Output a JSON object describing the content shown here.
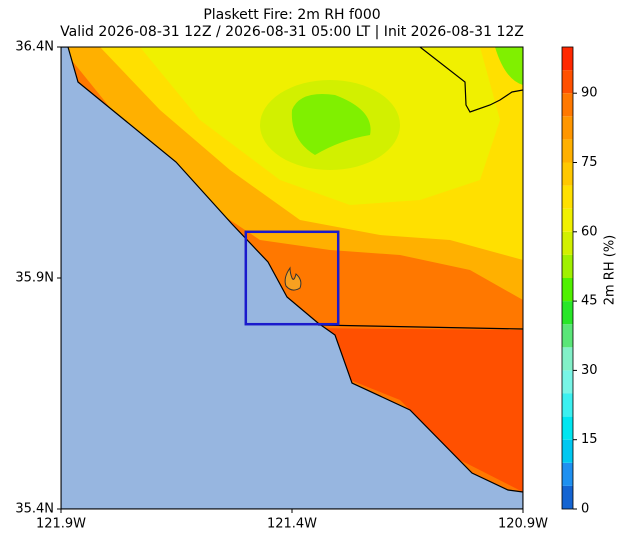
{
  "title": [
    "Plaskett Fire: 2m RH f000",
    "Valid 2026-08-31 12Z / 2026-08-31 05:00 LT | Init 2026-08-31 12Z"
  ],
  "map": {
    "xlim": [
      -121.9,
      -120.9
    ],
    "ylim": [
      35.4,
      36.4
    ],
    "xticks": [
      {
        "value": -121.9,
        "label": "121.9W"
      },
      {
        "value": -121.4,
        "label": "121.4W"
      },
      {
        "value": -120.9,
        "label": "120.9W"
      }
    ],
    "yticks": [
      {
        "value": 35.4,
        "label": "35.4N"
      },
      {
        "value": 35.9,
        "label": "35.9N"
      },
      {
        "value": 36.4,
        "label": "36.4N"
      }
    ],
    "fire_box": {
      "lon": [
        -121.5,
        -121.3
      ],
      "lat": [
        35.8,
        36.0
      ],
      "color": "#1a1acc"
    }
  },
  "colorbar": {
    "label": "2m RH (%)",
    "lim": [
      0,
      100
    ],
    "ticks": [
      0,
      15,
      30,
      45,
      60,
      75,
      90
    ],
    "levels": [
      0,
      5,
      10,
      15,
      20,
      25,
      30,
      35,
      40,
      45,
      50,
      55,
      60,
      65,
      70,
      75,
      80,
      85,
      90,
      95,
      100
    ],
    "colors": [
      "#1464d2",
      "#1e90f0",
      "#00c8f0",
      "#00e6f0",
      "#3cf0f0",
      "#78f5e6",
      "#82f0c8",
      "#5ae678",
      "#28e628",
      "#50f000",
      "#a0f000",
      "#d2f000",
      "#f0f000",
      "#ffe000",
      "#ffc800",
      "#ffb000",
      "#ff9600",
      "#ff7800",
      "#ff5000",
      "#ff2800"
    ]
  }
}
